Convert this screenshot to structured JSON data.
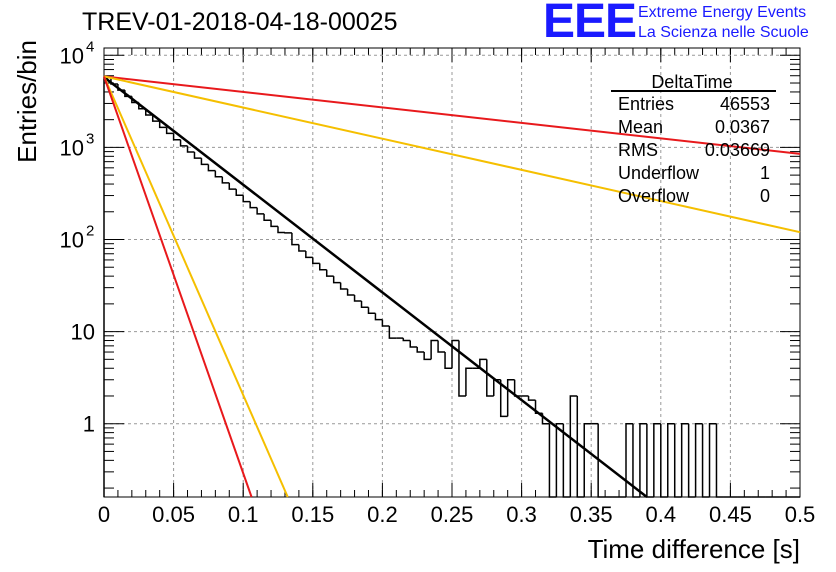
{
  "header": {
    "title": "TREV-01-2018-04-18-00025",
    "logo_mark": "EEE",
    "logo_line1": "Extreme Energy Events",
    "logo_line2": "La Scienza nelle Scuole"
  },
  "stats": {
    "name": "DeltaTime",
    "rows": [
      {
        "label": "Entries",
        "value": "46553"
      },
      {
        "label": "Mean",
        "value": "0.0367"
      },
      {
        "label": "RMS",
        "value": "0.03669"
      },
      {
        "label": "Underflow",
        "value": "1"
      },
      {
        "label": "Overflow",
        "value": "0"
      }
    ]
  },
  "chart_data": {
    "type": "histogram",
    "xlabel": "Time difference [s]",
    "ylabel": "Entries/bin",
    "xlim": [
      0,
      0.5
    ],
    "ylim": [
      0.16,
      12000
    ],
    "yscale": "log",
    "grid": true,
    "x_ticks": [
      "0",
      "0.05",
      "0.1",
      "0.15",
      "0.2",
      "0.25",
      "0.3",
      "0.35",
      "0.4",
      "0.45",
      "0.5"
    ],
    "y_tick_labels": [
      {
        "value": 1,
        "label": "1"
      },
      {
        "value": 10,
        "label": "10"
      },
      {
        "value": 100,
        "label": "10",
        "exp": "2"
      },
      {
        "value": 1000,
        "label": "10",
        "exp": "3"
      },
      {
        "value": 10000,
        "label": "10",
        "exp": "4"
      }
    ],
    "histogram": {
      "bin_width": 0.005,
      "bin_start": 0,
      "values": [
        5700,
        4880,
        4180,
        3580,
        3070,
        2630,
        2250,
        1930,
        1650,
        1420,
        1210,
        1040,
        890,
        765,
        655,
        560,
        480,
        412,
        352,
        302,
        258,
        222,
        190,
        162,
        139,
        119,
        118,
        88,
        75,
        64,
        55,
        47,
        40,
        34,
        29,
        25,
        21.5,
        18.4,
        15.8,
        13.5,
        11.5,
        8.5,
        8.5,
        8.0,
        6.8,
        6.0,
        5.0,
        8.0,
        6.0,
        4.0,
        8.0,
        2.0,
        4.0,
        4.0,
        5.0,
        2.0,
        3.0,
        1.2,
        3.0,
        2.0,
        2.0,
        1.8,
        1.3,
        1.0,
        0,
        1.0,
        0,
        2.0,
        0,
        1.0,
        1.0,
        0,
        0,
        0,
        0,
        1.0,
        0,
        1.0,
        0,
        1.0,
        0,
        1.0,
        0,
        1.0,
        0,
        1.0,
        0,
        1.0,
        0,
        0,
        0,
        0,
        0,
        0,
        0,
        0,
        0,
        0,
        0,
        0
      ]
    },
    "fits": [
      {
        "color": "#000000",
        "x": [
          0,
          0.39
        ],
        "y": [
          5800,
          0.16
        ]
      },
      {
        "color": "#e8191c",
        "x": [
          0,
          0.5
        ],
        "y": [
          5900,
          850
        ]
      },
      {
        "color": "#f5bf00",
        "x": [
          0,
          0.5
        ],
        "y": [
          5900,
          120
        ]
      },
      {
        "color": "#f5bf00",
        "x": [
          0,
          0.132
        ],
        "y": [
          5900,
          0.16
        ]
      },
      {
        "color": "#e8191c",
        "x": [
          0,
          0.106
        ],
        "y": [
          5900,
          0.16
        ]
      }
    ]
  }
}
